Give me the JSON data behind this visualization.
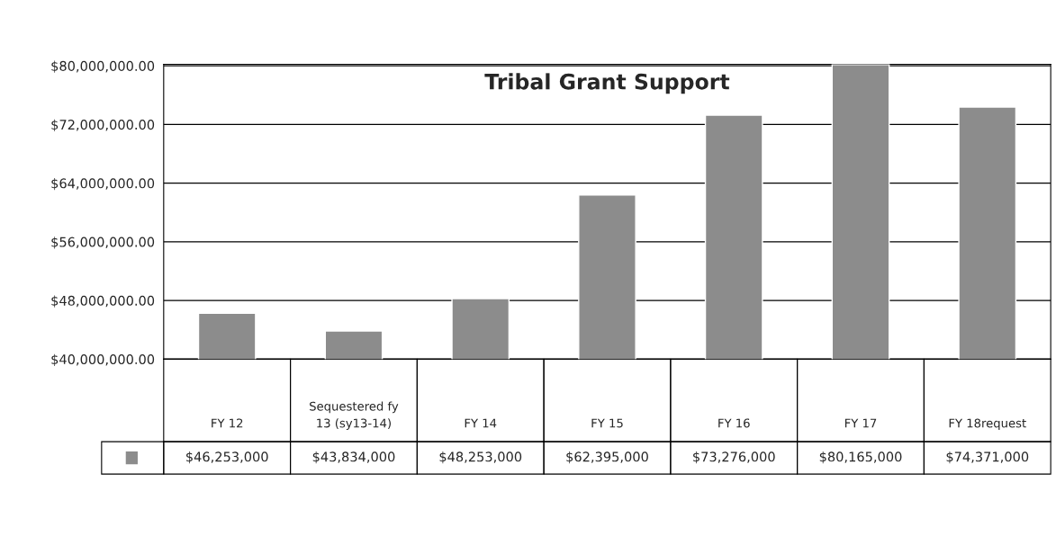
{
  "chart_data": {
    "type": "bar",
    "title": "Tribal Grant Support",
    "categories": [
      "FY 12",
      "Sequestered fy 13 (sy13-14)",
      "FY 14",
      "FY 15",
      "FY 16",
      "FY 17",
      "FY 18request"
    ],
    "values": [
      46253000,
      43834000,
      48253000,
      62395000,
      73276000,
      80165000,
      74371000
    ],
    "value_labels": [
      "$46,253,000",
      "$43,834,000",
      "$48,253,000",
      "$62,395,000",
      "$73,276,000",
      "$80,165,000",
      "$74,371,000"
    ],
    "color": "#8c8c8c",
    "ylim": [
      40000000,
      80200000
    ],
    "yticks": [
      {
        "value": 40000000,
        "label": "$40,000,000.00"
      },
      {
        "value": 48000000,
        "label": "$48,000,000.00"
      },
      {
        "value": 56000000,
        "label": "$56,000,000.00"
      },
      {
        "value": 64000000,
        "label": "$64,000,000.00"
      },
      {
        "value": 72000000,
        "label": "$72,000,000.00"
      },
      {
        "value": 80000000,
        "label": "$80,000,000.00"
      }
    ],
    "grid": "y"
  }
}
